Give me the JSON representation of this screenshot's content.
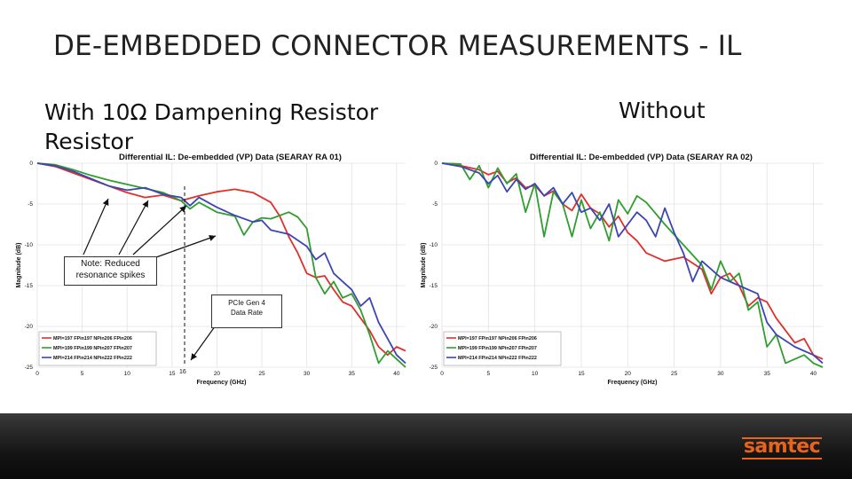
{
  "slide": {
    "title": "DE-EMBEDDED CONNECTOR MEASUREMENTS - IL",
    "left_caption_line1": "With 10Ω Dampening Resistor",
    "left_caption_line2": "Resistor",
    "right_caption": "Without"
  },
  "annotations": {
    "note": "Note: Reduced resonance spikes",
    "pcie_line1": "PCIe Gen 4",
    "pcie_line2": "Data Rate",
    "marker_label": "16"
  },
  "logo": {
    "text": "samtec",
    "color": "#e8631c"
  },
  "chart_data": [
    {
      "type": "line",
      "title": "Differential IL: De-embedded (VP) Data (SEARAY RA 01)",
      "xlabel": "Frequency (GHz)",
      "ylabel": "Magnitude (dB)",
      "xlim": [
        0,
        41
      ],
      "ylim": [
        -25,
        0
      ],
      "xticks": [
        0,
        5,
        10,
        15,
        20,
        25,
        30,
        35,
        40
      ],
      "yticks": [
        0,
        -5,
        -10,
        -15,
        -20,
        -25
      ],
      "grid": true,
      "legend_position": "bottom-left",
      "series": [
        {
          "name": "MPI=197 FPin197 NPin206 FPin206",
          "color": "#e0302a",
          "x": [
            0,
            2,
            4,
            6,
            8,
            10,
            12,
            14,
            16,
            18,
            20,
            22,
            24,
            26,
            27,
            28,
            29,
            30,
            31,
            32,
            33,
            34,
            35,
            36,
            37,
            38,
            39,
            40,
            41
          ],
          "y": [
            0,
            -0.4,
            -1.2,
            -2.0,
            -2.8,
            -3.6,
            -4.2,
            -3.9,
            -4.6,
            -4.0,
            -3.5,
            -3.2,
            -3.6,
            -4.8,
            -6.5,
            -9.0,
            -11.0,
            -13.5,
            -14.0,
            -13.8,
            -15.5,
            -17.0,
            -17.5,
            -19.0,
            -20.5,
            -22.5,
            -23.5,
            -22.5,
            -23.0
          ]
        },
        {
          "name": "MPI=199 FPin199 NPin207 FPin207",
          "color": "#2f9e2f",
          "x": [
            0,
            2,
            4,
            6,
            8,
            10,
            12,
            14,
            16,
            17,
            18,
            20,
            22,
            23,
            24,
            25,
            26,
            28,
            29,
            30,
            31,
            32,
            33,
            34,
            35,
            36,
            37,
            38,
            39,
            40,
            41
          ],
          "y": [
            0,
            -0.2,
            -0.8,
            -1.5,
            -2.1,
            -2.6,
            -3.1,
            -3.6,
            -4.6,
            -5.6,
            -4.8,
            -6.0,
            -6.5,
            -8.8,
            -7.2,
            -6.7,
            -6.8,
            -6.0,
            -6.6,
            -8.0,
            -14.0,
            -16.0,
            -14.5,
            -16.5,
            -16.0,
            -18.0,
            -21.0,
            -24.5,
            -23.0,
            -24.0,
            -25.0
          ]
        },
        {
          "name": "MPI=214 FPin214 NPin222 FPin222",
          "color": "#3b45b5",
          "x": [
            0,
            2,
            4,
            6,
            8,
            10,
            12,
            14,
            16,
            17,
            18,
            20,
            22,
            24,
            25,
            26,
            28,
            30,
            31,
            32,
            33,
            34,
            35,
            36,
            37,
            38,
            39,
            40,
            41
          ],
          "y": [
            0,
            -0.3,
            -1.0,
            -1.9,
            -2.8,
            -3.3,
            -3.0,
            -3.8,
            -4.2,
            -5.2,
            -4.2,
            -5.4,
            -6.4,
            -7.2,
            -7.0,
            -8.2,
            -8.7,
            -10.2,
            -11.8,
            -11.0,
            -13.5,
            -14.5,
            -15.5,
            -17.5,
            -16.5,
            -19.5,
            -21.5,
            -23.5,
            -24.5
          ]
        }
      ]
    },
    {
      "type": "line",
      "title": "Differential IL: De-embedded (VP) Data (SEARAY RA 02)",
      "xlabel": "Frequency (GHz)",
      "ylabel": "Magnitude (dB)",
      "xlim": [
        0,
        41
      ],
      "ylim": [
        -25,
        0
      ],
      "xticks": [
        0,
        5,
        10,
        15,
        20,
        25,
        30,
        35,
        40
      ],
      "yticks": [
        0,
        -5,
        -10,
        -15,
        -20,
        -25
      ],
      "grid": true,
      "legend_position": "bottom-left",
      "series": [
        {
          "name": "MPI=197 FPin197 NPin206 FPin206",
          "color": "#e0302a",
          "x": [
            0,
            2,
            4,
            5,
            6,
            7,
            8,
            9,
            10,
            11,
            12,
            13,
            14,
            15,
            16,
            17,
            18,
            19,
            20,
            21,
            22,
            24,
            26,
            28,
            29,
            30,
            31,
            32,
            33,
            34,
            35,
            36,
            37,
            38,
            39,
            40,
            41
          ],
          "y": [
            0,
            -0.3,
            -0.8,
            -1.4,
            -1.0,
            -2.4,
            -1.8,
            -3.0,
            -2.7,
            -4.0,
            -3.4,
            -5.0,
            -5.8,
            -3.8,
            -5.5,
            -6.2,
            -7.8,
            -6.5,
            -8.5,
            -9.5,
            -11.0,
            -12.0,
            -11.5,
            -13.0,
            -16.0,
            -14.0,
            -13.5,
            -15.0,
            -17.5,
            -16.5,
            -17.0,
            -19.0,
            -20.5,
            -22.0,
            -21.5,
            -23.5,
            -24.0
          ]
        },
        {
          "name": "MPI=199 FPin199 NPin207 FPin207",
          "color": "#2f9e2f",
          "x": [
            0,
            2,
            3,
            4,
            5,
            6,
            7,
            8,
            9,
            10,
            11,
            12,
            13,
            14,
            15,
            16,
            17,
            18,
            19,
            20,
            21,
            22,
            24,
            26,
            28,
            29,
            30,
            31,
            32,
            33,
            34,
            35,
            36,
            37,
            38,
            39,
            40,
            41
          ],
          "y": [
            0,
            -0.1,
            -2.0,
            -0.3,
            -3.0,
            -0.6,
            -2.5,
            -1.3,
            -6.0,
            -2.5,
            -9.0,
            -3.5,
            -5.0,
            -9.0,
            -4.5,
            -8.0,
            -6.0,
            -9.5,
            -4.5,
            -6.2,
            -4.0,
            -4.8,
            -7.5,
            -10.0,
            -12.5,
            -15.5,
            -12.0,
            -14.5,
            -13.5,
            -18.0,
            -17.0,
            -22.5,
            -21.0,
            -24.5,
            -24.0,
            -23.5,
            -24.5,
            -25.0
          ]
        },
        {
          "name": "MPI=214 FPin214 NPin222 FPin222",
          "color": "#3b45b5",
          "x": [
            0,
            2,
            4,
            5,
            6,
            7,
            8,
            9,
            10,
            11,
            12,
            13,
            14,
            15,
            16,
            17,
            18,
            19,
            20,
            21,
            22,
            23,
            24,
            25,
            26,
            27,
            28,
            30,
            32,
            34,
            35,
            36,
            38,
            40,
            41
          ],
          "y": [
            0,
            -0.4,
            -1.2,
            -2.5,
            -1.5,
            -3.5,
            -2.0,
            -3.2,
            -2.5,
            -4.0,
            -3.0,
            -5.0,
            -3.6,
            -6.0,
            -5.5,
            -7.0,
            -5.0,
            -9.0,
            -7.5,
            -6.0,
            -7.0,
            -9.0,
            -5.5,
            -8.5,
            -11.0,
            -14.5,
            -12.0,
            -14.0,
            -15.0,
            -16.0,
            -19.5,
            -21.0,
            -22.5,
            -23.5,
            -24.5
          ]
        }
      ]
    }
  ]
}
